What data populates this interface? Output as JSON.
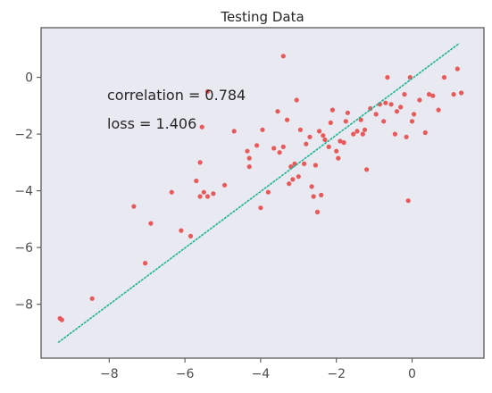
{
  "chart_data": {
    "type": "scatter",
    "title": "Testing Data",
    "xlabel": "",
    "ylabel": "",
    "xlim": [
      -9.8,
      1.9
    ],
    "ylim": [
      -9.9,
      1.75
    ],
    "x_ticks": [
      -8,
      -6,
      -4,
      -2,
      0
    ],
    "y_ticks": [
      0,
      -2,
      -4,
      -6,
      -8
    ],
    "x_tick_labels": [
      "−8",
      "−6",
      "−4",
      "−2",
      "0"
    ],
    "y_tick_labels": [
      "0",
      "−2",
      "−4",
      "−6",
      "−8"
    ],
    "annotations": [
      "correlation = 0.784",
      "loss = 1.406"
    ],
    "grid": false,
    "background_color": "#e9e9f1",
    "point_color": "#e8595a",
    "line_color": "#1fb494",
    "fit_line": {
      "x": [
        -9.35,
        1.25
      ],
      "y": [
        -9.35,
        1.2
      ]
    },
    "series": [
      {
        "points": [
          [
            -9.3,
            -8.5
          ],
          [
            -9.25,
            -8.55
          ],
          [
            -8.45,
            -7.8
          ],
          [
            -7.35,
            -4.55
          ],
          [
            -7.05,
            -6.55
          ],
          [
            -6.9,
            -5.15
          ],
          [
            -6.35,
            -4.05
          ],
          [
            -6.1,
            -5.4
          ],
          [
            -5.85,
            -5.6
          ],
          [
            -5.7,
            -3.65
          ],
          [
            -5.6,
            -4.2
          ],
          [
            -5.5,
            -4.05
          ],
          [
            -5.4,
            -4.2
          ],
          [
            -5.25,
            -4.1
          ],
          [
            -4.95,
            -3.8
          ],
          [
            -4.7,
            -1.9
          ],
          [
            -4.35,
            -2.6
          ],
          [
            -4.3,
            -2.85
          ],
          [
            -4.3,
            -3.15
          ],
          [
            -4.1,
            -2.4
          ],
          [
            -4.0,
            -4.6
          ],
          [
            -3.95,
            -1.85
          ],
          [
            -3.8,
            -4.05
          ],
          [
            -3.65,
            -2.5
          ],
          [
            -3.55,
            -1.2
          ],
          [
            -3.5,
            -2.65
          ],
          [
            -3.4,
            -2.45
          ],
          [
            -3.3,
            -1.5
          ],
          [
            -3.25,
            -3.75
          ],
          [
            -3.2,
            -3.15
          ],
          [
            -3.15,
            -3.6
          ],
          [
            -3.1,
            -3.05
          ],
          [
            -3.0,
            -3.5
          ],
          [
            -2.95,
            -1.85
          ],
          [
            -2.85,
            -3.05
          ],
          [
            -2.8,
            -2.35
          ],
          [
            -2.7,
            -2.1
          ],
          [
            -2.65,
            -3.85
          ],
          [
            -2.6,
            -4.2
          ],
          [
            -2.55,
            -3.1
          ],
          [
            -2.5,
            -4.75
          ],
          [
            -2.45,
            -1.9
          ],
          [
            -2.4,
            -4.15
          ],
          [
            -2.35,
            -2.05
          ],
          [
            -2.3,
            -2.2
          ],
          [
            -2.2,
            -2.45
          ],
          [
            -2.15,
            -1.6
          ],
          [
            -2.1,
            -1.15
          ],
          [
            -2.0,
            -2.6
          ],
          [
            -1.95,
            -2.85
          ],
          [
            -1.9,
            -2.25
          ],
          [
            -1.8,
            -2.3
          ],
          [
            -1.75,
            -1.55
          ],
          [
            -1.7,
            -1.25
          ],
          [
            -1.55,
            -2.0
          ],
          [
            -1.45,
            -1.9
          ],
          [
            -1.35,
            -1.5
          ],
          [
            -1.3,
            -2.0
          ],
          [
            -1.25,
            -1.85
          ],
          [
            -1.2,
            -3.25
          ],
          [
            -1.1,
            -1.1
          ],
          [
            -0.95,
            -1.3
          ],
          [
            -0.85,
            -0.95
          ],
          [
            -0.75,
            -1.55
          ],
          [
            -0.7,
            -0.9
          ],
          [
            -0.65,
            0.0
          ],
          [
            -0.55,
            -0.95
          ],
          [
            -0.45,
            -2.0
          ],
          [
            -0.4,
            -1.2
          ],
          [
            -0.3,
            -1.05
          ],
          [
            -0.2,
            -0.6
          ],
          [
            -0.15,
            -2.1
          ],
          [
            -0.1,
            -4.35
          ],
          [
            0.0,
            -1.55
          ],
          [
            0.05,
            -1.3
          ],
          [
            0.2,
            -0.8
          ],
          [
            0.35,
            -1.95
          ],
          [
            0.45,
            -0.6
          ],
          [
            0.55,
            -0.65
          ],
          [
            0.7,
            -1.15
          ],
          [
            0.85,
            0.0
          ],
          [
            1.1,
            -0.6
          ],
          [
            1.2,
            0.3
          ],
          [
            1.3,
            -0.55
          ],
          [
            -3.4,
            0.75
          ],
          [
            -5.4,
            -0.5
          ],
          [
            -5.55,
            -1.75
          ],
          [
            -5.6,
            -3.0
          ],
          [
            -3.05,
            -0.8
          ],
          [
            -0.05,
            0.0
          ]
        ]
      }
    ]
  }
}
